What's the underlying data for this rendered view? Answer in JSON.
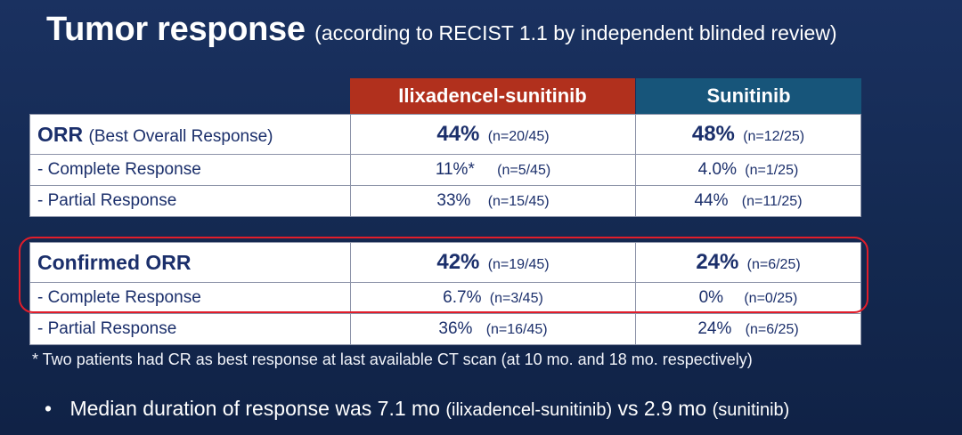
{
  "title": {
    "main": "Tumor response",
    "sub": "(according to RECIST 1.1 by independent blinded review)"
  },
  "columns": {
    "arm1": "Ilixadencel-sunitinib",
    "arm2": "Sunitinib"
  },
  "orr_table": {
    "main": {
      "label": "ORR",
      "label_sub": "(Best Overall Response)",
      "arm1_pct": "44%",
      "arm1_n": "(n=20/45)",
      "arm2_pct": "48%",
      "arm2_n": "(n=12/25)"
    },
    "cr": {
      "label": "- Complete Response",
      "arm1_pct": "11%*",
      "arm1_n": "(n=5/45)",
      "arm2_pct": "4.0%",
      "arm2_n": "(n=1/25)"
    },
    "pr": {
      "label": "- Partial Response",
      "arm1_pct": "33%",
      "arm1_n": "(n=15/45)",
      "arm2_pct": "44%",
      "arm2_n": "(n=11/25)"
    }
  },
  "confirmed_table": {
    "main": {
      "label": "Confirmed ORR",
      "arm1_pct": "42%",
      "arm1_n": "(n=19/45)",
      "arm2_pct": "24%",
      "arm2_n": "(n=6/25)"
    },
    "cr": {
      "label": "- Complete Response",
      "arm1_pct": "6.7%",
      "arm1_n": "(n=3/45)",
      "arm2_pct": "0%",
      "arm2_n": "(n=0/25)"
    },
    "pr": {
      "label": "- Partial Response",
      "arm1_pct": "36%",
      "arm1_n": "(n=16/45)",
      "arm2_pct": "24%",
      "arm2_n": "(n=6/25)"
    }
  },
  "footnote": "* Two patients had CR as best response at last available CT scan (at 10 mo. and 18 mo. respectively)",
  "bullet": {
    "symbol": "•",
    "text1": "Median duration of response was 7.1 mo",
    "text2": "(ilixadencel-sunitinib)",
    "text3": "vs 2.9 mo",
    "text4": "(sunitinib)"
  }
}
